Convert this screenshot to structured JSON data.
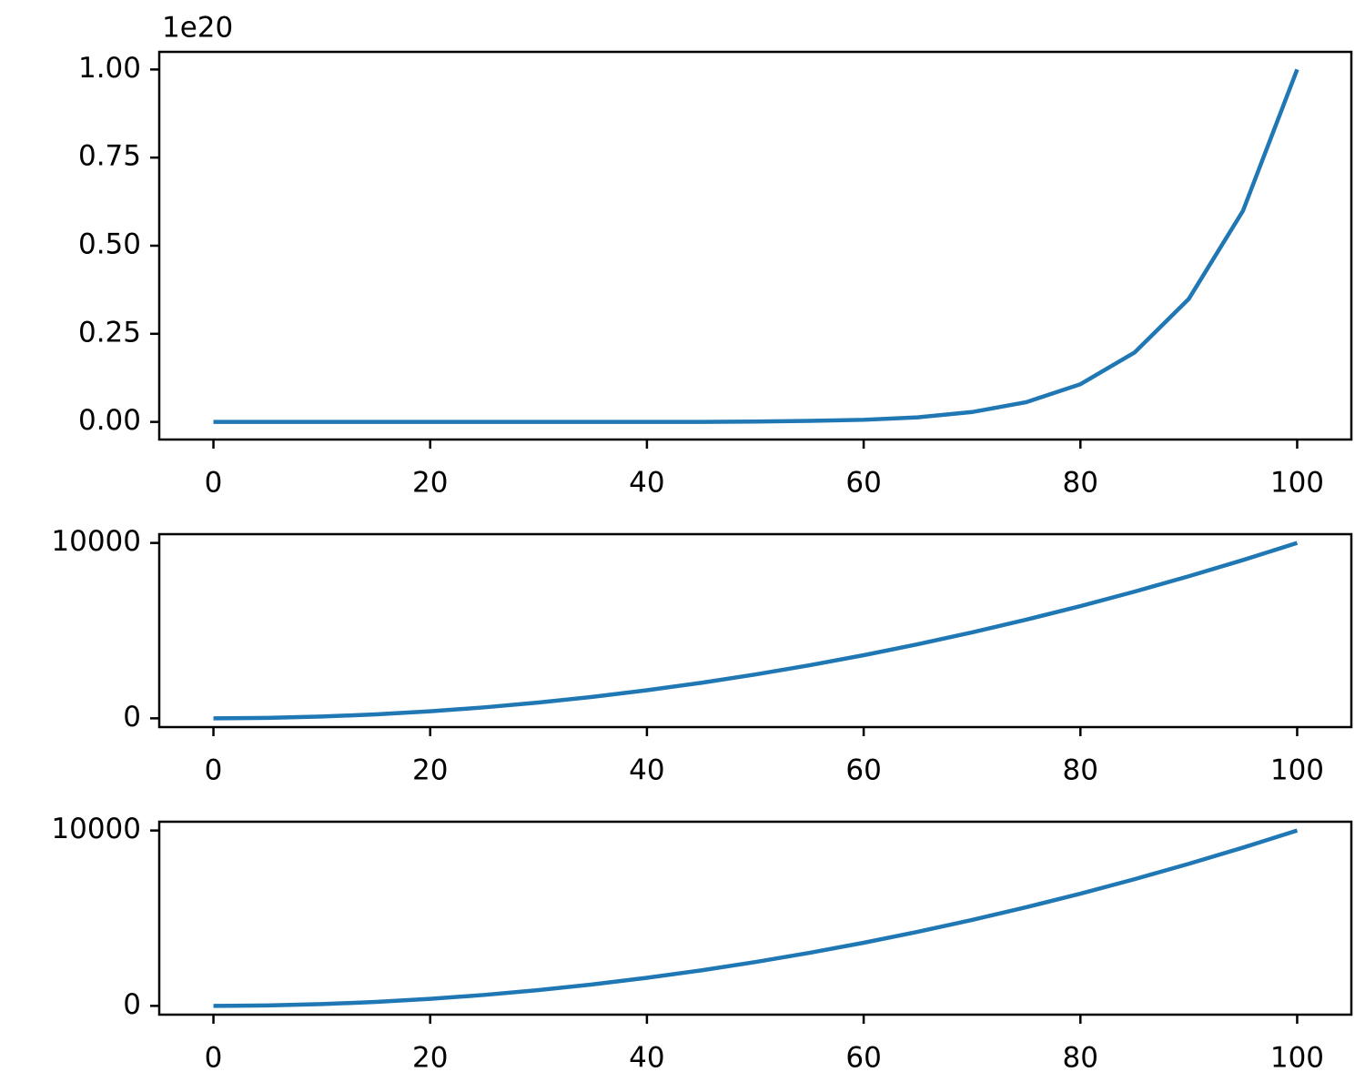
{
  "chart_data": [
    {
      "type": "line",
      "offset_text": "1e20",
      "x": [
        0,
        5,
        10,
        15,
        20,
        25,
        30,
        35,
        40,
        45,
        50,
        55,
        60,
        65,
        70,
        75,
        80,
        85,
        90,
        95,
        100
      ],
      "series": [
        {
          "color": "#1f77b4",
          "values": [
            0,
            0,
            0,
            0,
            0,
            0,
            0,
            0,
            0,
            0,
            0.001,
            0.003,
            0.006,
            0.013,
            0.028,
            0.056,
            0.107,
            0.197,
            0.349,
            0.599,
            1.0
          ]
        }
      ],
      "xlim": [
        -5,
        105
      ],
      "xticks": [
        0,
        20,
        40,
        60,
        80,
        100
      ],
      "ylim": [
        -0.05,
        1.05
      ],
      "yticks": [
        {
          "value": 0,
          "label": "0.00"
        },
        {
          "value": 0.25,
          "label": "0.25"
        },
        {
          "value": 0.5,
          "label": "0.50"
        },
        {
          "value": 0.75,
          "label": "0.75"
        },
        {
          "value": 1,
          "label": "1.00"
        }
      ]
    },
    {
      "type": "line",
      "x": [
        0,
        5,
        10,
        15,
        20,
        25,
        30,
        35,
        40,
        45,
        50,
        55,
        60,
        65,
        70,
        75,
        80,
        85,
        90,
        95,
        100
      ],
      "series": [
        {
          "color": "#1f77b4",
          "values": [
            0,
            25,
            100,
            225,
            400,
            625,
            900,
            1225,
            1600,
            2025,
            2500,
            3025,
            3600,
            4225,
            4900,
            5625,
            6400,
            7225,
            8100,
            9025,
            10000
          ]
        }
      ],
      "xlim": [
        -5,
        105
      ],
      "xticks": [
        0,
        20,
        40,
        60,
        80,
        100
      ],
      "ylim": [
        -500,
        10500
      ],
      "yticks": [
        0,
        10000
      ]
    },
    {
      "type": "line",
      "x": [
        0,
        5,
        10,
        15,
        20,
        25,
        30,
        35,
        40,
        45,
        50,
        55,
        60,
        65,
        70,
        75,
        80,
        85,
        90,
        95,
        100
      ],
      "series": [
        {
          "color": "#1f77b4",
          "values": [
            0,
            25,
            100,
            225,
            400,
            625,
            900,
            1225,
            1600,
            2025,
            2500,
            3025,
            3600,
            4225,
            4900,
            5625,
            6400,
            7225,
            8100,
            9025,
            10000
          ]
        }
      ],
      "xlim": [
        -5,
        105
      ],
      "xticks": [
        0,
        20,
        40,
        60,
        80,
        100
      ],
      "ylim": [
        -500,
        10500
      ],
      "yticks": [
        0,
        10000
      ]
    }
  ]
}
